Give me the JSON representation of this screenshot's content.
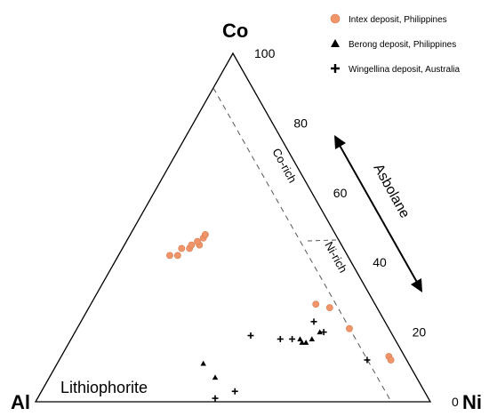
{
  "chart_data": {
    "type": "ternary",
    "vertices": {
      "top": "Co",
      "left": "Al",
      "right": "Ni"
    },
    "axis_ticks": [
      {
        "label": "100",
        "value": 100
      },
      {
        "label": "80",
        "value": 80
      },
      {
        "label": "60",
        "value": 60
      },
      {
        "label": "40",
        "value": 40
      },
      {
        "label": "20",
        "value": 20
      },
      {
        "label": "0",
        "value": 0
      }
    ],
    "legend": [
      {
        "label": "Intex deposit, Philippines",
        "marker": "circle",
        "color": "#f0956a"
      },
      {
        "label": "Berong deposit, Philippines",
        "marker": "triangle",
        "color": "#000000"
      },
      {
        "label": "Wingellina deposit, Australia",
        "marker": "plus",
        "color": "#000000"
      }
    ],
    "annotations": {
      "co_rich": "Co-rich",
      "ni_rich": "Ni-rich",
      "asbolane": "Asbolane",
      "lithiophorite": "Lithiophorite"
    },
    "series": [
      {
        "name": "Intex deposit, Philippines",
        "marker": "circle",
        "points": [
          {
            "co": 42,
            "ni": 13
          },
          {
            "co": 42,
            "ni": 15
          },
          {
            "co": 44,
            "ni": 15
          },
          {
            "co": 44,
            "ni": 17
          },
          {
            "co": 45,
            "ni": 17
          },
          {
            "co": 45,
            "ni": 19
          },
          {
            "co": 46,
            "ni": 18
          },
          {
            "co": 47,
            "ni": 19
          },
          {
            "co": 48,
            "ni": 19
          },
          {
            "co": 28,
            "ni": 57
          },
          {
            "co": 27,
            "ni": 61
          },
          {
            "co": 21,
            "ni": 69
          },
          {
            "co": 13,
            "ni": 83
          },
          {
            "co": 12,
            "ni": 84
          }
        ]
      },
      {
        "name": "Berong deposit, Philippines",
        "marker": "triangle",
        "points": [
          {
            "co": 18,
            "ni": 58
          },
          {
            "co": 17,
            "ni": 59
          },
          {
            "co": 17,
            "ni": 60
          },
          {
            "co": 18,
            "ni": 61
          },
          {
            "co": 20,
            "ni": 62
          },
          {
            "co": 11,
            "ni": 37
          },
          {
            "co": 7,
            "ni": 42
          }
        ]
      },
      {
        "name": "Wingellina deposit, Australia",
        "marker": "plus",
        "points": [
          {
            "co": 23,
            "ni": 59
          },
          {
            "co": 20,
            "ni": 63
          },
          {
            "co": 18,
            "ni": 53
          },
          {
            "co": 18,
            "ni": 56
          },
          {
            "co": 19,
            "ni": 45
          },
          {
            "co": 12,
            "ni": 78
          },
          {
            "co": 3,
            "ni": 49
          },
          {
            "co": 1,
            "ni": 45
          }
        ]
      }
    ]
  }
}
